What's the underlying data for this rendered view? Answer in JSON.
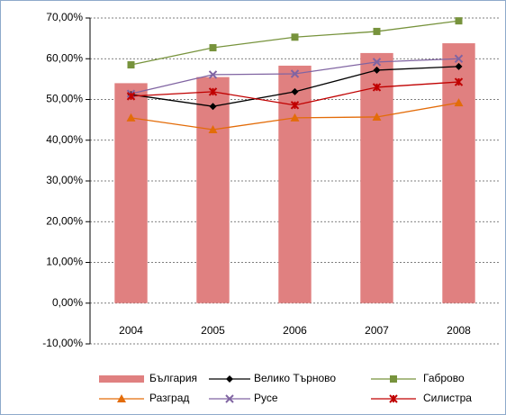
{
  "chart_data": {
    "type": "bar-line",
    "categories": [
      "2004",
      "2005",
      "2006",
      "2007",
      "2008"
    ],
    "series": [
      {
        "name": "България",
        "type": "bar",
        "color": "#e08080",
        "values": [
          54,
          55.5,
          58.3,
          61.4,
          63.8
        ]
      },
      {
        "name": "Велико Търново",
        "type": "line",
        "marker": "diamond",
        "color": "#000000",
        "values": [
          51.2,
          48.3,
          51.9,
          57.2,
          58.1
        ]
      },
      {
        "name": "Габрово",
        "type": "line",
        "marker": "square",
        "color": "#77933c",
        "values": [
          58.5,
          62.7,
          65.3,
          66.7,
          69.3
        ]
      },
      {
        "name": "Разград",
        "type": "line",
        "marker": "triangle",
        "color": "#e36c09",
        "values": [
          45.5,
          42.6,
          45.5,
          45.7,
          49.2
        ]
      },
      {
        "name": "Русе",
        "type": "line",
        "marker": "x",
        "color": "#8064a2",
        "values": [
          51.4,
          56.1,
          56.3,
          59.2,
          60.0
        ]
      },
      {
        "name": "Силистра",
        "type": "line",
        "marker": "star",
        "color": "#c00000",
        "values": [
          50.8,
          51.9,
          48.6,
          53.0,
          54.3
        ]
      }
    ],
    "ylim": [
      -10,
      70
    ],
    "yticks": [
      {
        "value": -10,
        "label": "-10,00%"
      },
      {
        "value": 0,
        "label": "0,00%"
      },
      {
        "value": 10,
        "label": "10,00%"
      },
      {
        "value": 20,
        "label": "20,00%"
      },
      {
        "value": 30,
        "label": "30,00%"
      },
      {
        "value": 40,
        "label": "40,00%"
      },
      {
        "value": 50,
        "label": "50,00%"
      },
      {
        "value": 60,
        "label": "60,00%"
      },
      {
        "value": 70,
        "label": "70,00%"
      }
    ],
    "grid": true,
    "legend": "bottom"
  }
}
